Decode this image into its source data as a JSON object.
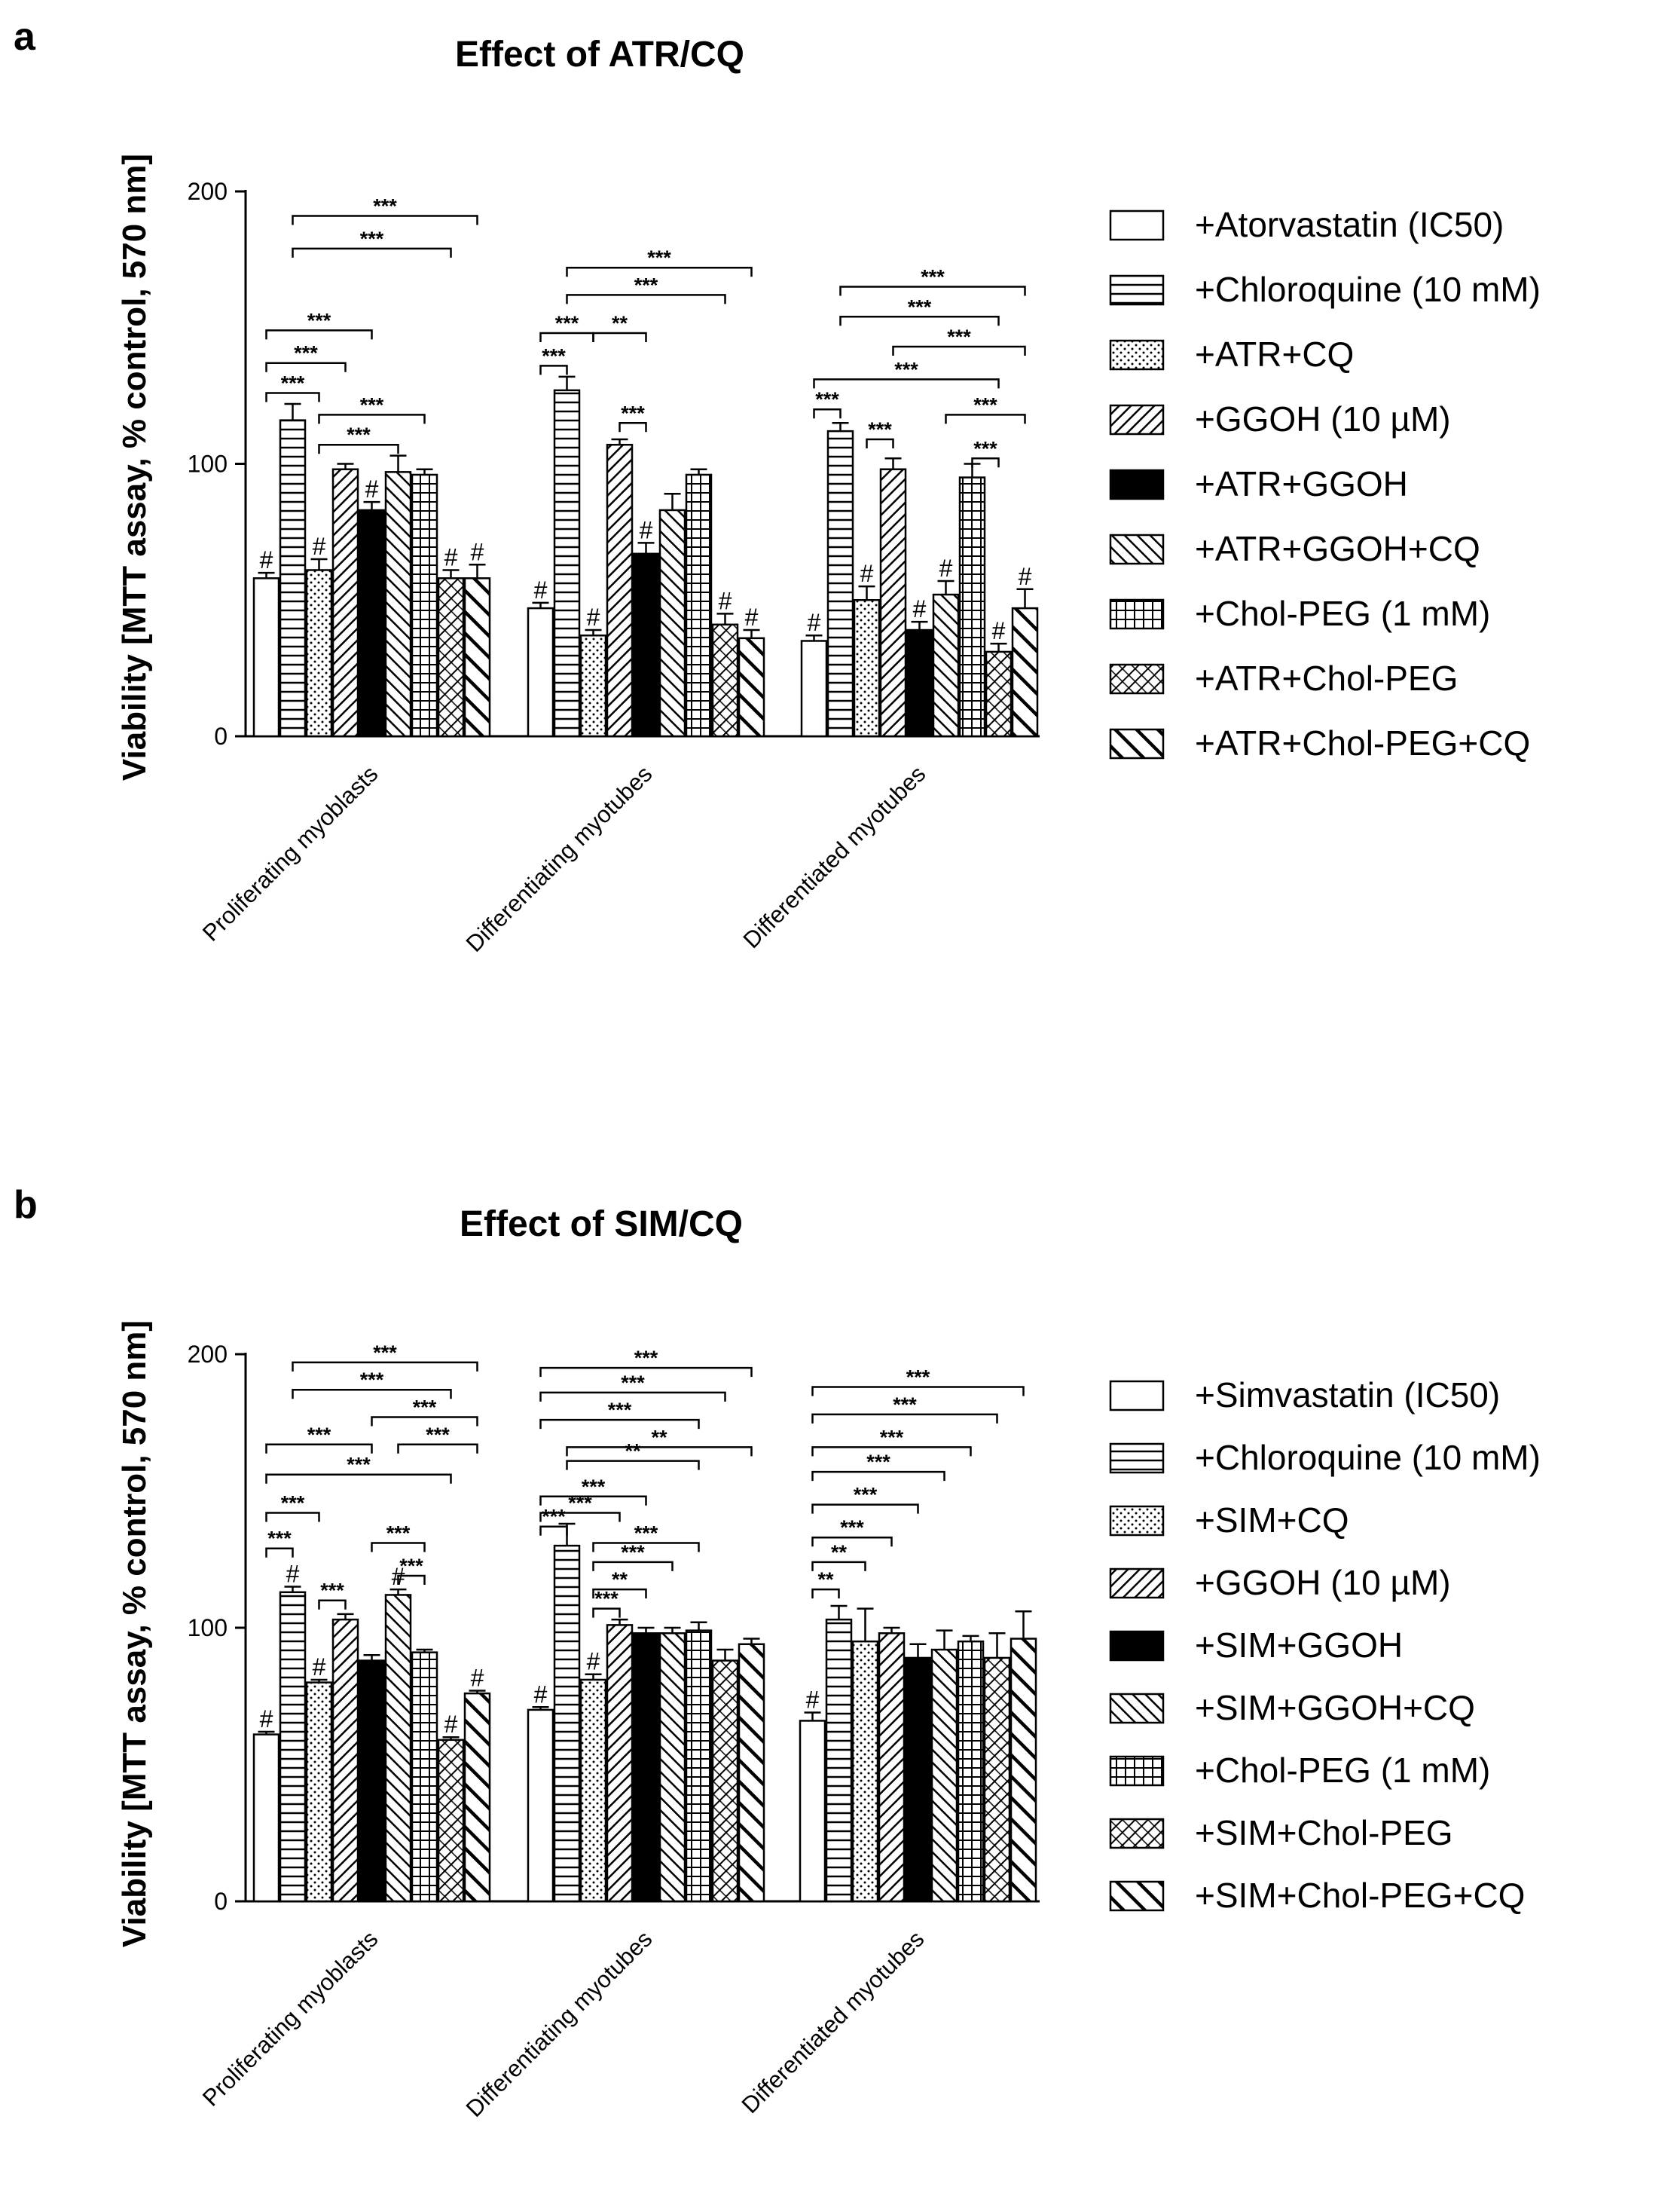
{
  "chart_data": [
    {
      "type": "bar",
      "panel": "a",
      "title": "Effect of ATR/CQ",
      "xlabel": "",
      "ylabel": "Viability [MTT assay, % control, 570 nm]",
      "ylim": [
        0,
        200
      ],
      "yticks": [
        "0",
        "100",
        "200"
      ],
      "categories": [
        "Proliferating myoblasts",
        "Differentiating myotubes",
        "Differentiated myotubes"
      ],
      "series": [
        {
          "name": "+Atorvastatin (IC50)",
          "pattern": "open",
          "values": [
            58,
            47,
            35
          ],
          "errors": [
            2,
            2,
            2
          ],
          "hash": [
            true,
            true,
            true
          ]
        },
        {
          "name": "+Chloroquine (10 mM)",
          "pattern": "hlines",
          "values": [
            116,
            127,
            112
          ],
          "errors": [
            6,
            5,
            3
          ],
          "hash": [
            false,
            false,
            false
          ]
        },
        {
          "name": "+ATR+CQ",
          "pattern": "dots",
          "values": [
            61,
            37,
            50
          ],
          "errors": [
            4,
            2,
            5
          ],
          "hash": [
            true,
            true,
            true
          ]
        },
        {
          "name": "+GGOH (10 µM)",
          "pattern": "diag-fine",
          "values": [
            98,
            107,
            98
          ],
          "errors": [
            2,
            2,
            4
          ],
          "hash": [
            false,
            false,
            false
          ]
        },
        {
          "name": "+ATR+GGOH",
          "pattern": "solid",
          "values": [
            83,
            67,
            39
          ],
          "errors": [
            3,
            4,
            3
          ],
          "hash": [
            true,
            true,
            true
          ]
        },
        {
          "name": "+ATR+GGOH+CQ",
          "pattern": "backdiag",
          "values": [
            97,
            83,
            52
          ],
          "errors": [
            6,
            6,
            5
          ],
          "hash": [
            false,
            false,
            true
          ]
        },
        {
          "name": "+Chol-PEG (1 mM)",
          "pattern": "grid",
          "values": [
            96,
            96,
            95
          ],
          "errors": [
            2,
            2,
            5
          ],
          "hash": [
            false,
            false,
            false
          ]
        },
        {
          "name": "+ATR+Chol-PEG",
          "pattern": "crossdiag",
          "values": [
            58,
            41,
            31
          ],
          "errors": [
            3,
            4,
            3
          ],
          "hash": [
            true,
            true,
            true
          ]
        },
        {
          "name": "+ATR+Chol-PEG+CQ",
          "pattern": "backdiag-thick",
          "values": [
            58,
            36,
            47
          ],
          "errors": [
            5,
            3,
            7
          ],
          "hash": [
            true,
            true,
            true
          ]
        }
      ],
      "significance": [
        {
          "group": 0,
          "from": 1,
          "to": 8,
          "level": 191,
          "label": "***"
        },
        {
          "group": 0,
          "from": 1,
          "to": 7,
          "level": 179,
          "label": "***"
        },
        {
          "group": 0,
          "from": 0,
          "to": 4,
          "level": 149,
          "label": "***"
        },
        {
          "group": 0,
          "from": 0,
          "to": 3,
          "level": 137,
          "label": "***"
        },
        {
          "group": 0,
          "from": 0,
          "to": 2,
          "level": 126,
          "label": "***"
        },
        {
          "group": 0,
          "from": 2,
          "to": 6,
          "level": 118,
          "label": "***"
        },
        {
          "group": 0,
          "from": 2,
          "to": 5,
          "level": 107,
          "label": "***"
        },
        {
          "group": 1,
          "from": 1,
          "to": 8,
          "level": 172,
          "label": "***"
        },
        {
          "group": 1,
          "from": 1,
          "to": 7,
          "level": 162,
          "label": "***"
        },
        {
          "group": 1,
          "from": 0,
          "to": 2,
          "level": 148,
          "label": "***"
        },
        {
          "group": 1,
          "from": 2,
          "to": 4,
          "level": 148,
          "label": "**"
        },
        {
          "group": 1,
          "from": 0,
          "to": 1,
          "level": 136,
          "label": "***"
        },
        {
          "group": 1,
          "from": 3,
          "to": 4,
          "level": 115,
          "label": "***"
        },
        {
          "group": 2,
          "from": 1,
          "to": 8,
          "level": 165,
          "label": "***"
        },
        {
          "group": 2,
          "from": 1,
          "to": 7,
          "level": 154,
          "label": "***"
        },
        {
          "group": 2,
          "from": 3,
          "to": 8,
          "level": 143,
          "label": "***"
        },
        {
          "group": 2,
          "from": 0,
          "to": 7,
          "level": 131,
          "label": "***"
        },
        {
          "group": 2,
          "from": 0,
          "to": 1,
          "level": 120,
          "label": "***"
        },
        {
          "group": 2,
          "from": 5,
          "to": 8,
          "level": 118,
          "label": "***"
        },
        {
          "group": 2,
          "from": 2,
          "to": 3,
          "level": 109,
          "label": "***"
        },
        {
          "group": 2,
          "from": 6,
          "to": 7,
          "level": 102,
          "label": "***"
        }
      ]
    },
    {
      "type": "bar",
      "panel": "b",
      "title": "Effect of SIM/CQ",
      "xlabel": "",
      "ylabel": "Viability [MTT assay, % control, 570 nm]",
      "ylim": [
        0,
        200
      ],
      "yticks": [
        "0",
        "100",
        "200"
      ],
      "categories": [
        "Proliferating myoblasts",
        "Differentiating myotubes",
        "Differentiated myotubes"
      ],
      "series": [
        {
          "name": "+Simvastatin (IC50)",
          "pattern": "open",
          "values": [
            61,
            70,
            66
          ],
          "errors": [
            1,
            1,
            3
          ],
          "hash": [
            true,
            true,
            true
          ]
        },
        {
          "name": "+Chloroquine (10 mM)",
          "pattern": "hlines",
          "values": [
            113,
            130,
            103
          ],
          "errors": [
            2,
            8,
            5
          ],
          "hash": [
            true,
            false,
            false
          ]
        },
        {
          "name": "+SIM+CQ",
          "pattern": "dots",
          "values": [
            80,
            81,
            95
          ],
          "errors": [
            1,
            2,
            12
          ],
          "hash": [
            true,
            true,
            false
          ]
        },
        {
          "name": "+GGOH (10 µM)",
          "pattern": "diag-fine",
          "values": [
            103,
            101,
            98
          ],
          "errors": [
            2,
            2,
            2
          ],
          "hash": [
            false,
            false,
            false
          ]
        },
        {
          "name": "+SIM+GGOH",
          "pattern": "solid",
          "values": [
            88,
            98,
            89
          ],
          "errors": [
            2,
            2,
            5
          ],
          "hash": [
            false,
            false,
            false
          ]
        },
        {
          "name": "+SIM+GGOH+CQ",
          "pattern": "backdiag",
          "values": [
            112,
            98,
            92
          ],
          "errors": [
            2,
            2,
            7
          ],
          "hash": [
            true,
            false,
            false
          ]
        },
        {
          "name": "+Chol-PEG (1 mM)",
          "pattern": "grid",
          "values": [
            91,
            99,
            95
          ],
          "errors": [
            1,
            3,
            2
          ],
          "hash": [
            false,
            false,
            false
          ]
        },
        {
          "name": "+SIM+Chol-PEG",
          "pattern": "crossdiag",
          "values": [
            59,
            88,
            89
          ],
          "errors": [
            1,
            4,
            9
          ],
          "hash": [
            true,
            false,
            false
          ]
        },
        {
          "name": "+SIM+Chol-PEG+CQ",
          "pattern": "backdiag-thick",
          "values": [
            76,
            94,
            96
          ],
          "errors": [
            1,
            2,
            10
          ],
          "hash": [
            true,
            false,
            false
          ]
        }
      ],
      "significance": [
        {
          "group": 0,
          "from": 1,
          "to": 8,
          "level": 197,
          "label": "***"
        },
        {
          "group": 0,
          "from": 1,
          "to": 7,
          "level": 187,
          "label": "***"
        },
        {
          "group": 0,
          "from": 4,
          "to": 8,
          "level": 177,
          "label": "***"
        },
        {
          "group": 0,
          "from": 0,
          "to": 4,
          "level": 167,
          "label": "***"
        },
        {
          "group": 0,
          "from": 5,
          "to": 8,
          "level": 167,
          "label": "***"
        },
        {
          "group": 0,
          "from": 0,
          "to": 7,
          "level": 156,
          "label": "***"
        },
        {
          "group": 0,
          "from": 0,
          "to": 2,
          "level": 142,
          "label": "***"
        },
        {
          "group": 0,
          "from": 0,
          "to": 1,
          "level": 129,
          "label": "***"
        },
        {
          "group": 0,
          "from": 4,
          "to": 6,
          "level": 131,
          "label": "***"
        },
        {
          "group": 0,
          "from": 2,
          "to": 3,
          "level": 110,
          "label": "***"
        },
        {
          "group": 0,
          "from": 5,
          "to": 6,
          "level": 119,
          "label": "***"
        },
        {
          "group": 1,
          "from": 0,
          "to": 8,
          "level": 195,
          "label": "***"
        },
        {
          "group": 1,
          "from": 0,
          "to": 7,
          "level": 186,
          "label": "***"
        },
        {
          "group": 1,
          "from": 0,
          "to": 6,
          "level": 176,
          "label": "***"
        },
        {
          "group": 1,
          "from": 1,
          "to": 8,
          "level": 166,
          "label": "**"
        },
        {
          "group": 1,
          "from": 1,
          "to": 6,
          "level": 161,
          "label": "**"
        },
        {
          "group": 1,
          "from": 0,
          "to": 4,
          "level": 148,
          "label": "***"
        },
        {
          "group": 1,
          "from": 0,
          "to": 3,
          "level": 142,
          "label": "***"
        },
        {
          "group": 1,
          "from": 0,
          "to": 1,
          "level": 137,
          "label": "***"
        },
        {
          "group": 1,
          "from": 2,
          "to": 6,
          "level": 131,
          "label": "***"
        },
        {
          "group": 1,
          "from": 2,
          "to": 5,
          "level": 124,
          "label": "***"
        },
        {
          "group": 1,
          "from": 2,
          "to": 4,
          "level": 114,
          "label": "**"
        },
        {
          "group": 1,
          "from": 2,
          "to": 3,
          "level": 107,
          "label": "***"
        },
        {
          "group": 2,
          "from": 0,
          "to": 8,
          "level": 188,
          "label": "***"
        },
        {
          "group": 2,
          "from": 0,
          "to": 7,
          "level": 178,
          "label": "***"
        },
        {
          "group": 2,
          "from": 0,
          "to": 6,
          "level": 166,
          "label": "***"
        },
        {
          "group": 2,
          "from": 0,
          "to": 5,
          "level": 157,
          "label": "***"
        },
        {
          "group": 2,
          "from": 0,
          "to": 4,
          "level": 145,
          "label": "***"
        },
        {
          "group": 2,
          "from": 0,
          "to": 3,
          "level": 133,
          "label": "***"
        },
        {
          "group": 2,
          "from": 0,
          "to": 2,
          "level": 124,
          "label": "**"
        },
        {
          "group": 2,
          "from": 0,
          "to": 1,
          "level": 114,
          "label": "**"
        }
      ]
    }
  ],
  "hash_marker": "#"
}
